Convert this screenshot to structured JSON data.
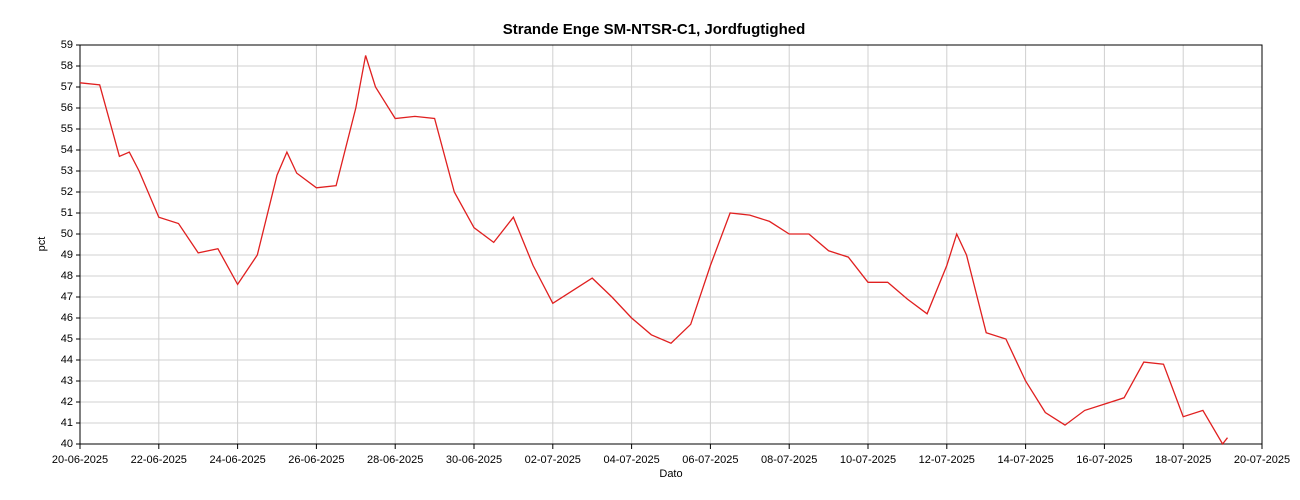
{
  "chart_data": {
    "type": "line",
    "title": "Strande Enge SM-NTSR-C1, Jordfugtighed",
    "xlabel": "Dato",
    "ylabel": "pct",
    "x": [
      "2025-06-20 00:00",
      "2025-06-20 12:00",
      "2025-06-21 00:00",
      "2025-06-21 06:00",
      "2025-06-21 12:00",
      "2025-06-22 00:00",
      "2025-06-22 12:00",
      "2025-06-23 00:00",
      "2025-06-23 12:00",
      "2025-06-24 00:00",
      "2025-06-24 12:00",
      "2025-06-25 00:00",
      "2025-06-25 06:00",
      "2025-06-25 12:00",
      "2025-06-26 00:00",
      "2025-06-26 12:00",
      "2025-06-27 00:00",
      "2025-06-27 06:00",
      "2025-06-27 12:00",
      "2025-06-28 00:00",
      "2025-06-28 12:00",
      "2025-06-29 00:00",
      "2025-06-29 12:00",
      "2025-06-30 00:00",
      "2025-06-30 12:00",
      "2025-07-01 00:00",
      "2025-07-01 12:00",
      "2025-07-02 00:00",
      "2025-07-02 12:00",
      "2025-07-03 00:00",
      "2025-07-03 12:00",
      "2025-07-04 00:00",
      "2025-07-04 12:00",
      "2025-07-05 00:00",
      "2025-07-05 12:00",
      "2025-07-06 00:00",
      "2025-07-06 12:00",
      "2025-07-07 00:00",
      "2025-07-07 12:00",
      "2025-07-08 00:00",
      "2025-07-08 12:00",
      "2025-07-09 00:00",
      "2025-07-09 12:00",
      "2025-07-10 00:00",
      "2025-07-10 12:00",
      "2025-07-11 00:00",
      "2025-07-11 12:00",
      "2025-07-12 00:00",
      "2025-07-12 06:00",
      "2025-07-12 12:00",
      "2025-07-13 00:00",
      "2025-07-13 12:00",
      "2025-07-14 00:00",
      "2025-07-14 12:00",
      "2025-07-15 00:00",
      "2025-07-15 12:00",
      "2025-07-16 00:00",
      "2025-07-16 12:00",
      "2025-07-17 00:00",
      "2025-07-17 12:00",
      "2025-07-18 00:00",
      "2025-07-18 12:00",
      "2025-07-19 00:00",
      "2025-07-19 03:00"
    ],
    "series": [
      {
        "name": "pct",
        "color": "#e02020",
        "values": [
          57.2,
          57.1,
          53.7,
          53.9,
          53.0,
          50.8,
          50.5,
          49.1,
          49.3,
          47.6,
          49.0,
          52.8,
          53.9,
          52.9,
          52.2,
          52.3,
          56.0,
          58.5,
          57.0,
          55.5,
          55.6,
          55.5,
          52.0,
          50.3,
          49.6,
          50.8,
          48.5,
          46.7,
          47.3,
          47.9,
          47.0,
          46.0,
          45.2,
          44.8,
          45.7,
          48.5,
          51.0,
          50.9,
          50.6,
          50.0,
          50.0,
          49.2,
          48.9,
          47.7,
          47.7,
          46.9,
          46.2,
          48.5,
          50.0,
          49.0,
          45.3,
          45.0,
          43.0,
          41.5,
          40.9,
          41.6,
          41.9,
          42.2,
          43.9,
          43.8,
          41.3,
          41.6,
          40.0,
          40.3
        ]
      }
    ],
    "xlim": [
      "2025-06-20",
      "2025-07-20"
    ],
    "xticks": [
      {
        "value": "2025-06-20",
        "label": "20-06-2025"
      },
      {
        "value": "2025-06-22",
        "label": "22-06-2025"
      },
      {
        "value": "2025-06-24",
        "label": "24-06-2025"
      },
      {
        "value": "2025-06-26",
        "label": "26-06-2025"
      },
      {
        "value": "2025-06-28",
        "label": "28-06-2025"
      },
      {
        "value": "2025-06-30",
        "label": "30-06-2025"
      },
      {
        "value": "2025-07-02",
        "label": "02-07-2025"
      },
      {
        "value": "2025-07-04",
        "label": "04-07-2025"
      },
      {
        "value": "2025-07-06",
        "label": "06-07-2025"
      },
      {
        "value": "2025-07-08",
        "label": "08-07-2025"
      },
      {
        "value": "2025-07-10",
        "label": "10-07-2025"
      },
      {
        "value": "2025-07-12",
        "label": "12-07-2025"
      },
      {
        "value": "2025-07-14",
        "label": "14-07-2025"
      },
      {
        "value": "2025-07-16",
        "label": "16-07-2025"
      },
      {
        "value": "2025-07-18",
        "label": "18-07-2025"
      },
      {
        "value": "2025-07-20",
        "label": "20-07-2025"
      }
    ],
    "ylim": [
      40,
      59
    ],
    "yticks": [
      40,
      41,
      42,
      43,
      44,
      45,
      46,
      47,
      48,
      49,
      50,
      51,
      52,
      53,
      54,
      55,
      56,
      57,
      58,
      59
    ],
    "grid": true
  }
}
